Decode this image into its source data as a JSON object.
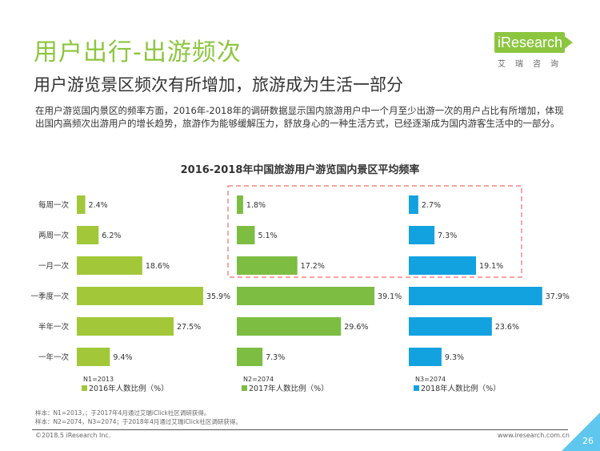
{
  "header": {
    "title": "用户出行-出游频次",
    "subtitle": "用户游览景区频次有所增加，旅游成为生活一部分",
    "description": "在用户游览国内景区的频率方面，2016年-2018年的调研数据显示国内旅游用户中一个月至少出游一次的用户占比有所增加，体现出国内高频次出游用户的增长趋势，旅游作为能够缓解压力，舒放身心的一种生活方式，已经逐渐成为国内游客生活中的一部分。"
  },
  "logo": {
    "text": "iResearch",
    "subtitle": "艾瑞咨询"
  },
  "chart_data": {
    "type": "bar",
    "orientation": "horizontal",
    "title": "2016-2018年中国旅游用户游览国内景区平均频率",
    "categories": [
      "每周一次",
      "两周一次",
      "一月一次",
      "一季度一次",
      "半年一次",
      "一年一次"
    ],
    "series": [
      {
        "name": "2016年人数比例（%）",
        "values": [
          2.4,
          6.2,
          18.6,
          35.9,
          27.5,
          9.4
        ],
        "sample": "N1=2013",
        "color": "#a2c83a"
      },
      {
        "name": "2017年人数比例（%）",
        "values": [
          1.8,
          5.1,
          17.2,
          39.1,
          29.6,
          7.3
        ],
        "sample": "N2=2074",
        "color": "#7cbd42"
      },
      {
        "name": "2018年人数比例（%）",
        "values": [
          2.7,
          7.3,
          19.1,
          37.9,
          23.6,
          9.3
        ],
        "sample": "N3=2074",
        "color": "#12a2e0"
      }
    ],
    "value_suffix": "%",
    "highlight": "前三类（每周一次、两周一次、一月一次）的2017年与2018年数据以红色虚线框标出",
    "highlight_color": "#ee6d6d",
    "legend_position": "bottom"
  },
  "notes": [
    "样本：N1=2013，；于2017年4月通过艾瑞iClick社区调研获得。",
    "样本：N2=2074，N3=2074；于2018年4月通过艾瑞iClick社区调研获得。"
  ],
  "footer": {
    "copyright": "©2018.5 iResearch Inc.",
    "website": "www.iresearch.com.cn",
    "page": "26"
  }
}
